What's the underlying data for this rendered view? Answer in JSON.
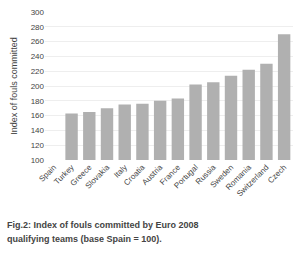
{
  "chart_data": {
    "type": "bar",
    "categories": [
      "Spain",
      "Turkey",
      "Greece",
      "Slovakia",
      "Italy",
      "Croatia",
      "Austria",
      "France",
      "Portugal",
      "Russia",
      "Sweden",
      "Romania",
      "Switzerland",
      "Czech"
    ],
    "values": [
      100,
      163,
      165,
      170,
      175,
      176,
      180,
      183,
      202,
      205,
      214,
      222,
      230,
      270
    ],
    "color": "#b0b0b0",
    "ylabel": "Index of fouls committed",
    "ylim": [
      100,
      300
    ],
    "yticks": [
      100,
      120,
      140,
      160,
      180,
      200,
      220,
      240,
      260,
      280,
      300
    ],
    "grid": true,
    "annotations": [
      "Fig.2: Index of fouls committed by Euro 2008",
      "qualifying teams (base Spain = 100)."
    ]
  }
}
